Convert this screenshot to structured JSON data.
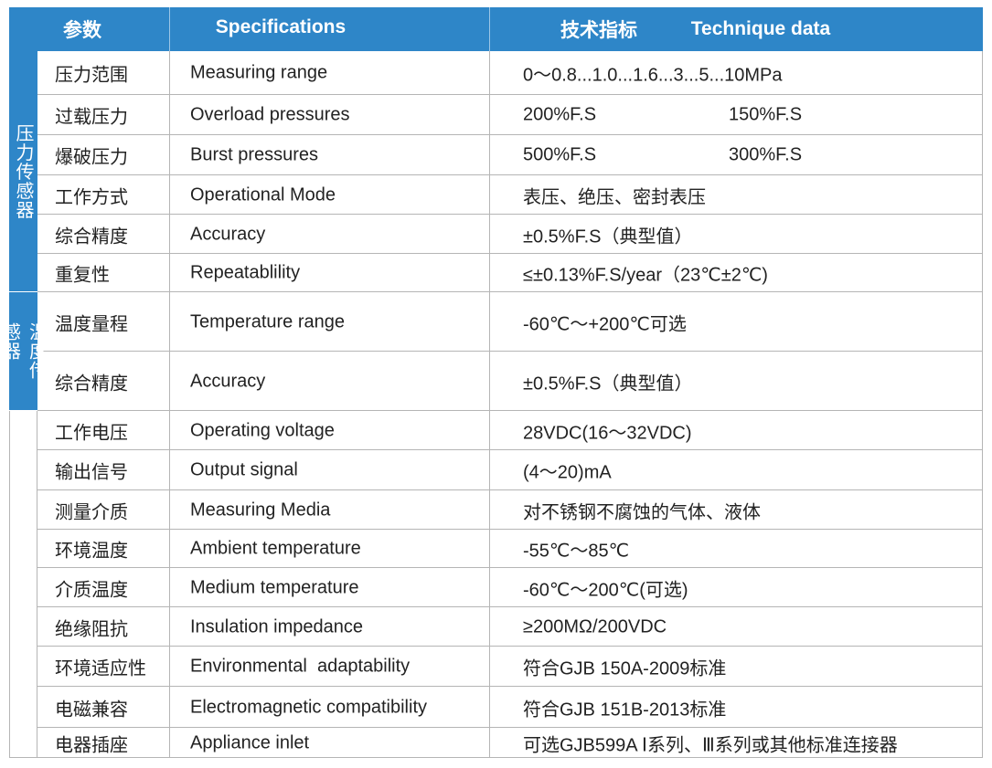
{
  "header": {
    "param": "参数",
    "spec": "Specifications",
    "tech_cn": "技术指标",
    "tech_en": "Technique data"
  },
  "table": {
    "groups": [
      {
        "label": "压力传感器",
        "rows": [
          {
            "cn": "压力范围",
            "en": "Measuring range",
            "values": [
              "0～0.8...1.0...1.6...3...5...10MPa"
            ]
          },
          {
            "cn": "过载压力",
            "en": "Overload pressures",
            "values": [
              "200%F.S",
              "150%F.S"
            ]
          },
          {
            "cn": "爆破压力",
            "en": "Burst pressures",
            "values": [
              "500%F.S",
              "300%F.S"
            ]
          },
          {
            "cn": "工作方式",
            "en": "Operational Mode",
            "values": [
              "表压、绝压、密封表压"
            ]
          },
          {
            "cn": "综合精度",
            "en": "Accuracy",
            "values": [
              "±0.5%F.S（典型值）"
            ]
          },
          {
            "cn": "重复性",
            "en": "Repeatablility",
            "values": [
              "≤±0.13%F.S/year（23℃±2℃)"
            ]
          }
        ]
      },
      {
        "label": "温度传感器",
        "rows": [
          {
            "cn": "温度量程",
            "en": "Temperature range",
            "values": [
              "-60℃～+200℃可选"
            ]
          },
          {
            "cn": "综合精度",
            "en": "Accuracy",
            "values": [
              "±0.5%F.S（典型值）"
            ]
          }
        ]
      },
      {
        "rows": [
          {
            "cn": "工作电压",
            "en": "Operating voltage",
            "values": [
              "28VDC(16～32VDC)"
            ]
          },
          {
            "cn": "输出信号",
            "en": "Output signal",
            "values": [
              "(4～20)mA"
            ]
          },
          {
            "cn": "测量介质",
            "en": "Measuring Media",
            "values": [
              "对不锈钢不腐蚀的气体、液体"
            ]
          },
          {
            "cn": "环境温度",
            "en": "Ambient temperature",
            "values": [
              "-55℃～85℃"
            ]
          },
          {
            "cn": "介质温度",
            "en": "Medium temperature",
            "values": [
              "-60℃～200℃(可选)"
            ]
          },
          {
            "cn": "绝缘阻抗",
            "en": "Insulation impedance",
            "values": [
              "≥200MΩ/200VDC"
            ]
          },
          {
            "cn": "环境适应性",
            "en": "Environmental  adaptability",
            "values": [
              "符合GJB 150A-2009标准"
            ]
          },
          {
            "cn": "电磁兼容",
            "en": "Electromagnetic compatibility",
            "values": [
              "符合GJB 151B-2013标准"
            ]
          },
          {
            "cn": "电器插座",
            "en": "Appliance inlet",
            "values": [
              "可选GJB599A Ⅰ系列、Ⅲ系列或其他标准连接器"
            ]
          }
        ]
      }
    ]
  }
}
